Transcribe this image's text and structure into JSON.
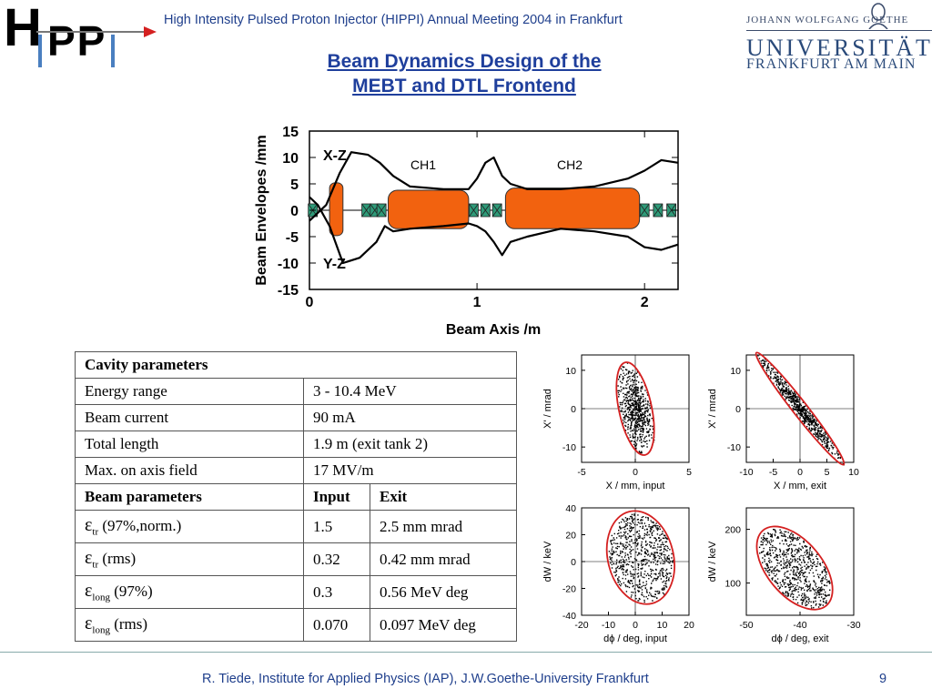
{
  "header": {
    "logo_h": "H",
    "logo_pp": "PP",
    "title": "High Intensity Pulsed Proton Injector (HIPPI) Annual Meeting 2004 in Frankfurt",
    "uni_small": "JOHANN WOLFGANG    GOETHE",
    "uni_big": "UNIVERSITÄT",
    "uni_city": "FRANKFURT AM MAIN"
  },
  "slide": {
    "title_line1": "Beam Dynamics Design of the",
    "title_line2": "MEBT and DTL Frontend"
  },
  "chart_data": [
    {
      "type": "line",
      "ylabel": "Beam Envelopes  /mm",
      "xlabel": "Beam Axis /m",
      "x_ticks": [
        "0",
        "1",
        "2"
      ],
      "y_ticks": [
        "15",
        "10",
        "5",
        "0",
        "-5",
        "-10",
        "-15"
      ],
      "xlim": [
        0,
        2.2
      ],
      "ylim": [
        -15,
        15
      ],
      "annotations": [
        "X-Z",
        "Y-Z",
        "CH1",
        "CH2"
      ],
      "series": [
        {
          "x": [
            0,
            0.05,
            0.12,
            0.2,
            0.3,
            0.4,
            0.45,
            0.5,
            0.6,
            0.8,
            0.95,
            1.0,
            1.05,
            1.1,
            1.15,
            1.2,
            1.3,
            1.5,
            1.7,
            1.9,
            2.0,
            2.1,
            2.2
          ],
          "y": [
            2.5,
            1,
            -3,
            -10,
            -9,
            -6,
            -3,
            -4,
            -3.5,
            -3,
            -2.5,
            -3,
            -4,
            -6,
            -8.5,
            -6,
            -5,
            -3.5,
            -4,
            -5,
            -7,
            -7.5,
            -6.5
          ]
        },
        {
          "x": [
            0,
            0.1,
            0.18,
            0.25,
            0.35,
            0.42,
            0.5,
            0.6,
            0.8,
            0.95,
            1.0,
            1.05,
            1.1,
            1.15,
            1.2,
            1.3,
            1.5,
            1.7,
            1.9,
            2.0,
            2.1,
            2.2
          ],
          "y": [
            -2,
            1,
            7,
            11,
            10.5,
            9,
            6.5,
            4.5,
            4,
            4,
            6,
            9,
            10,
            6.5,
            5,
            4,
            4,
            4.5,
            6,
            7.5,
            9.5,
            9
          ]
        }
      ]
    },
    {
      "type": "scatter",
      "xlabel": "X / mm,  input",
      "ylabel": "X' / mrad",
      "x_ticks": [
        "-5",
        "0",
        "5"
      ],
      "y_ticks": [
        "10",
        "0",
        "-10"
      ],
      "xlim": [
        -5,
        5
      ],
      "ylim": [
        -14,
        14
      ]
    },
    {
      "type": "scatter",
      "xlabel": "X / mm,  exit",
      "ylabel": "X' / mrad",
      "x_ticks": [
        "-10",
        "-5",
        "0",
        "5",
        "10"
      ],
      "y_ticks": [
        "10",
        "0",
        "-10"
      ],
      "xlim": [
        -10,
        10
      ],
      "ylim": [
        -14,
        14
      ]
    },
    {
      "type": "scatter",
      "xlabel": "dϕ / deg,  input",
      "ylabel": "dW  / keV",
      "x_ticks": [
        "-20",
        "-10",
        "0",
        "10",
        "20"
      ],
      "y_ticks": [
        "40",
        "20",
        "0",
        "-20",
        "-40"
      ],
      "xlim": [
        -20,
        20
      ],
      "ylim": [
        -40,
        40
      ]
    },
    {
      "type": "scatter",
      "xlabel": "dϕ / deg,  exit",
      "ylabel": "dW  / keV",
      "x_ticks": [
        "-50",
        "-40",
        "-30"
      ],
      "y_ticks": [
        "200",
        "100"
      ],
      "xlim": [
        -50,
        -30
      ],
      "ylim": [
        40,
        240
      ]
    }
  ],
  "table": {
    "cavity_header": "Cavity parameters",
    "cavity_rows": [
      {
        "label": "Energy range",
        "value": "3 - 10.4 MeV"
      },
      {
        "label": "Beam current",
        "value": "90 mA"
      },
      {
        "label": "Total length",
        "value": "1.9 m (exit tank 2)"
      },
      {
        "label": "Max. on axis field",
        "value": "17 MV/m"
      }
    ],
    "beam_header": {
      "label": "Beam parameters",
      "input": "Input",
      "exit": "Exit"
    },
    "beam_rows": [
      {
        "eps": "ε",
        "sub": "tr",
        "rest": " (97%,norm.)",
        "input": "1.5",
        "exit": "2.5 mm mrad"
      },
      {
        "eps": "ε",
        "sub": "tr",
        "rest": " (rms)",
        "input": "0.32",
        "exit": "0.42 mm mrad"
      },
      {
        "eps": "ε",
        "sub": "long",
        "rest": " (97%)",
        "input": "0.3",
        "exit": "0.56 MeV deg"
      },
      {
        "eps": "ε",
        "sub": "long",
        "rest": " (rms)",
        "input": "0.070",
        "exit": "0.097 MeV deg"
      }
    ]
  },
  "footer": {
    "text": "R. Tiede, Institute for Applied Physics (IAP), J.W.Goethe-University Frankfurt",
    "page": "9"
  },
  "colors": {
    "accent_blue": "#1f3f8c",
    "cavity_orange": "#f2620f",
    "quad_green": "#2e9a78",
    "ellipse_red": "#d42020"
  }
}
